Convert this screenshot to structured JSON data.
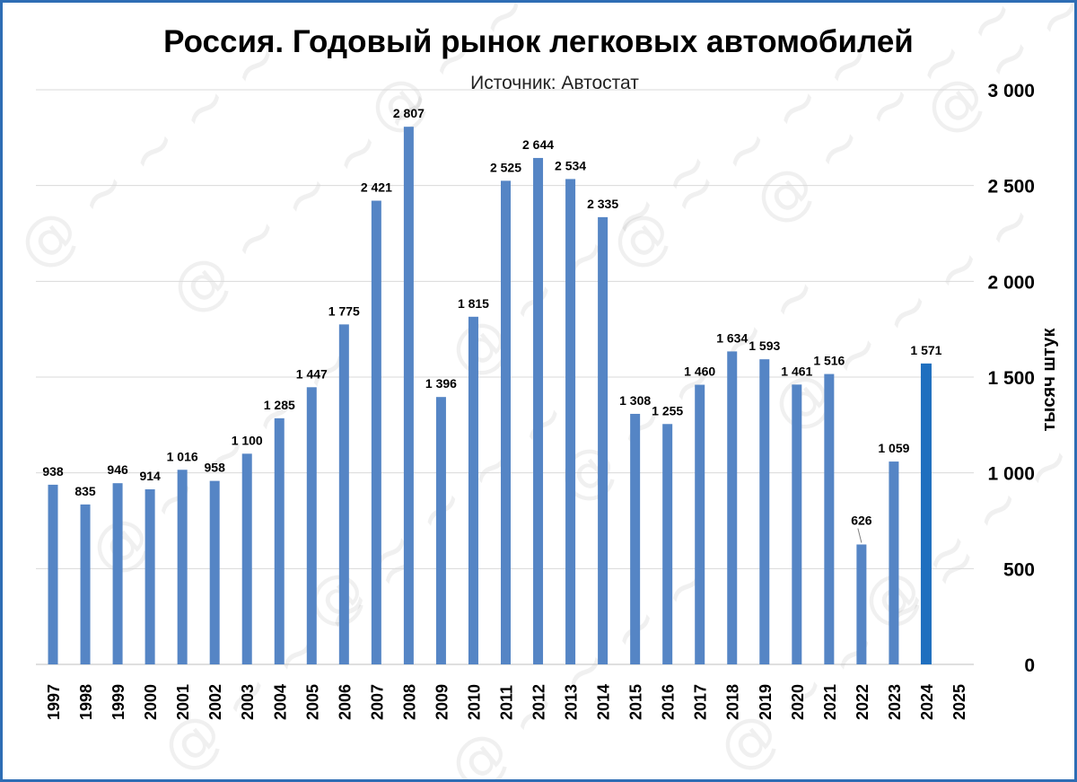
{
  "chart_data": {
    "type": "bar",
    "title": "Россия. Годовый рынок легковых автомобилей",
    "subtitle": "Источник: Автостат",
    "ylabel": "тысяч штук",
    "ylim": [
      0,
      3000
    ],
    "yticks": [
      0,
      500,
      1000,
      1500,
      2000,
      2500,
      3000
    ],
    "ytick_labels": [
      "0",
      "500",
      "1 000",
      "1 500",
      "2 000",
      "2 500",
      "3 000"
    ],
    "grid": true,
    "categories": [
      "1997",
      "1998",
      "1999",
      "2000",
      "2001",
      "2002",
      "2003",
      "2004",
      "2005",
      "2006",
      "2007",
      "2008",
      "2009",
      "2010",
      "2011",
      "2012",
      "2013",
      "2014",
      "2015",
      "2016",
      "2017",
      "2018",
      "2019",
      "2020",
      "2021",
      "2022",
      "2023",
      "2024",
      "2025"
    ],
    "values": [
      938,
      835,
      946,
      914,
      1016,
      958,
      1100,
      1285,
      1447,
      1775,
      2421,
      2807,
      1396,
      1815,
      2525,
      2644,
      2534,
      2335,
      1308,
      1255,
      1460,
      1634,
      1593,
      1461,
      1516,
      626,
      1059,
      1571,
      null
    ],
    "value_labels": [
      "938",
      "835",
      "946",
      "914",
      "1 016",
      "958",
      "1 100",
      "1 285",
      "1 447",
      "1 775",
      "2 421",
      "2 807",
      "1 396",
      "1 815",
      "2 525",
      "2 644",
      "2 534",
      "2 335",
      "1 308",
      "1 255",
      "1 460",
      "1 634",
      "1 593",
      "1 461",
      "1 516",
      "626",
      "1 059",
      "1 571",
      ""
    ],
    "colors": {
      "bar": "#5585c5",
      "highlight_bar": "#1f6fbf",
      "grid": "#d9d9d9",
      "frame": "#2e6db4"
    },
    "highlight_category": "2024"
  }
}
